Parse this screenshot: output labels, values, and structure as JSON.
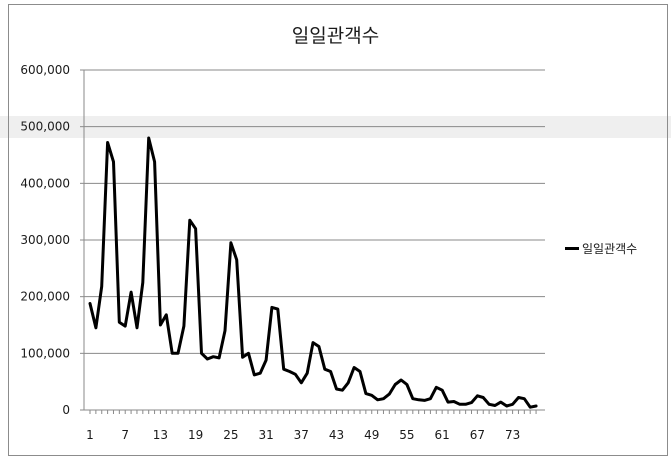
{
  "chart_data": {
    "type": "line",
    "title": "일일관객수",
    "xlabel": "",
    "ylabel": "",
    "ylim": [
      0,
      600000
    ],
    "y_ticks": [
      "0",
      "100,000",
      "200,000",
      "300,000",
      "400,000",
      "500,000",
      "600,000"
    ],
    "x_ticks": [
      "1",
      "7",
      "13",
      "19",
      "25",
      "31",
      "37",
      "43",
      "49",
      "55",
      "61",
      "67",
      "73"
    ],
    "grid": "horizontal",
    "legend_position": "right",
    "series": [
      {
        "name": "일일관객수",
        "color": "#000000",
        "x": [
          1,
          2,
          3,
          4,
          5,
          6,
          7,
          8,
          9,
          10,
          11,
          12,
          13,
          14,
          15,
          16,
          17,
          18,
          19,
          20,
          21,
          22,
          23,
          24,
          25,
          26,
          27,
          28,
          29,
          30,
          31,
          32,
          33,
          34,
          35,
          36,
          37,
          38,
          39,
          40,
          41,
          42,
          43,
          44,
          45,
          46,
          47,
          48,
          49,
          50,
          51,
          52,
          53,
          54,
          55,
          56,
          57,
          58,
          59,
          60,
          61,
          62,
          63,
          64,
          65,
          66,
          67,
          68,
          69,
          70,
          71,
          72,
          73,
          74,
          75,
          76,
          77
        ],
        "values": [
          188000,
          145000,
          218000,
          472000,
          438000,
          155000,
          148000,
          208000,
          145000,
          225000,
          480000,
          438000,
          150000,
          168000,
          100000,
          100000,
          148000,
          335000,
          320000,
          100000,
          90000,
          94000,
          92000,
          140000,
          295000,
          265000,
          93000,
          100000,
          62000,
          65000,
          88000,
          181000,
          178000,
          72000,
          68000,
          63000,
          48000,
          65000,
          119000,
          112000,
          72000,
          68000,
          37000,
          35000,
          48000,
          75000,
          68000,
          29000,
          26000,
          18000,
          20000,
          28000,
          45000,
          53000,
          45000,
          20000,
          18000,
          17000,
          20000,
          40000,
          35000,
          14000,
          15000,
          10000,
          10000,
          13000,
          25000,
          22000,
          10000,
          8000,
          14000,
          7000,
          10000,
          22000,
          20000,
          5000,
          7000
        ]
      }
    ]
  }
}
